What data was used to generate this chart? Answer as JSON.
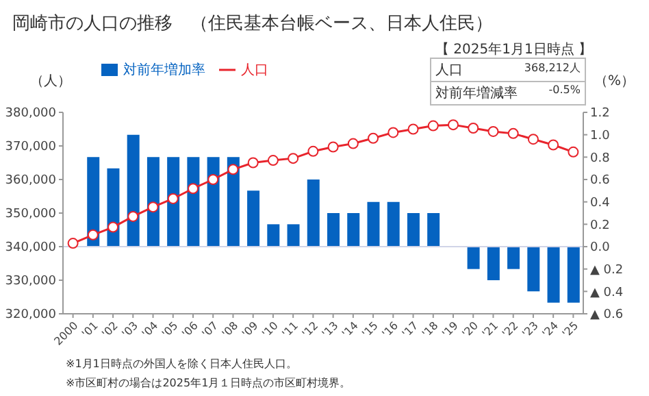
{
  "chart_data": {
    "type": "bar",
    "title": "岡崎市の人口の推移　（住民基本台帳ベース、日本人住民）",
    "categories": [
      "2000",
      "'01",
      "'02",
      "'03",
      "'04",
      "'05",
      "'06",
      "'07",
      "'08",
      "'09",
      "'10",
      "'11",
      "'12",
      "'13",
      "'14",
      "'15",
      "'16",
      "'17",
      "'18",
      "'19",
      "'20",
      "'21",
      "'22",
      "'23",
      "'24",
      "'25"
    ],
    "series": [
      {
        "name": "対前年増加率",
        "axis": "y2",
        "color": "#0563c1",
        "values": [
          null,
          0.8,
          0.7,
          1.0,
          0.8,
          0.8,
          0.8,
          0.8,
          0.8,
          0.5,
          0.2,
          0.2,
          0.6,
          0.3,
          0.3,
          0.4,
          0.4,
          0.3,
          0.3,
          null,
          -0.2,
          -0.3,
          -0.2,
          -0.4,
          -0.5,
          -0.5
        ]
      },
      {
        "name": "人口",
        "type": "line",
        "color": "#e8242c",
        "values": [
          341000,
          343500,
          345800,
          349000,
          351800,
          354300,
          357300,
          360000,
          363000,
          365000,
          365700,
          366300,
          368400,
          369700,
          370700,
          372300,
          374000,
          375000,
          376000,
          376300,
          375300,
          374300,
          373700,
          372000,
          370300,
          368200
        ]
      }
    ],
    "ylabel": "（人）",
    "y2label": "（%）",
    "ylim": [
      320000,
      380000
    ],
    "yticks": [
      {
        "value": 320000,
        "label": "320,000"
      },
      {
        "value": 330000,
        "label": "330,000"
      },
      {
        "value": 340000,
        "label": "340,000"
      },
      {
        "value": 350000,
        "label": "350,000"
      },
      {
        "value": 360000,
        "label": "360,000"
      },
      {
        "value": 370000,
        "label": "370,000"
      },
      {
        "value": 380000,
        "label": "380,000"
      }
    ],
    "y2lim": [
      -0.6,
      1.2
    ],
    "y2ticks": [
      {
        "value": -0.6,
        "label": "▲ 0.6"
      },
      {
        "value": -0.4,
        "label": "▲ 0.4"
      },
      {
        "value": -0.2,
        "label": "▲ 0.2"
      },
      {
        "value": 0,
        "label": "0.0"
      },
      {
        "value": 0.2,
        "label": "0.2"
      },
      {
        "value": 0.4,
        "label": "0.4"
      },
      {
        "value": 0.6,
        "label": "0.6"
      },
      {
        "value": 0.8,
        "label": "0.8"
      },
      {
        "value": 1.0,
        "label": "1.0"
      },
      {
        "value": 1.2,
        "label": "1.2"
      }
    ],
    "ref_lines": [
      {
        "axis": "y2",
        "value": 0,
        "color": "#d0d4e8"
      }
    ],
    "marker": "circle",
    "legend": "top",
    "grid": false,
    "annotations": [
      "【 2025年1月1日時点 】",
      "人口",
      "368,212人",
      "対前年増減率",
      "-0.5%",
      "※1月1日時点の外国人を除く日本人住民人口。",
      "※市区町村の場合は2025年1月１日時点の市区町村境界。"
    ]
  }
}
